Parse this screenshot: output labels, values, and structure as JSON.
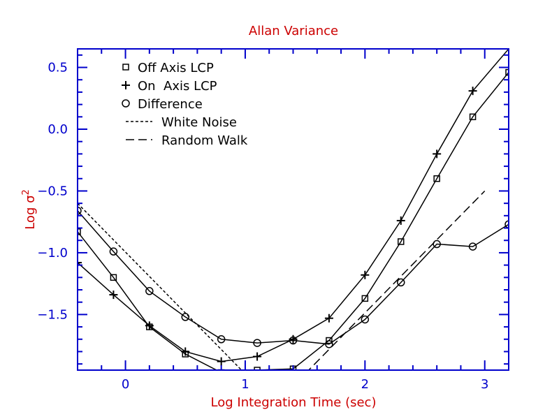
{
  "chart_data": {
    "type": "line",
    "title": "Allan Variance",
    "xlabel": "Log Integration Time (sec)",
    "ylabel": "Log σ",
    "ylabel_superscript": "2",
    "xlim": [
      -0.4,
      3.2
    ],
    "ylim": [
      -1.95,
      0.65
    ],
    "x_ticks": [
      0,
      1,
      2,
      3
    ],
    "x_tick_labels": [
      "0",
      "1",
      "2",
      "3"
    ],
    "x_minor_step": 0.2,
    "y_ticks": [
      0.5,
      0.0,
      -0.5,
      -1.0,
      -1.5
    ],
    "y_tick_labels": [
      "0.5",
      "0.0",
      "−0.5",
      "−1.0",
      "−1.5"
    ],
    "y_minor_step": 0.1,
    "grid": false,
    "legend_position": "top-left",
    "colors": {
      "frame": "#0000cc",
      "ticks": "#0000cc",
      "labels": "#cc0000",
      "data": "#000000"
    },
    "series": [
      {
        "name": "Off Axis LCP",
        "marker": "square",
        "x": [
          -0.4,
          -0.1,
          0.2,
          0.5,
          0.8,
          1.1,
          1.4,
          1.7,
          2.0,
          2.3,
          2.6,
          2.9,
          3.2
        ],
        "y": [
          -0.83,
          -1.2,
          -1.6,
          -1.82,
          -1.97,
          -1.95,
          -1.94,
          -1.71,
          -1.37,
          -0.91,
          -0.4,
          0.1,
          0.46
        ]
      },
      {
        "name": "On  Axis LCP",
        "marker": "plus",
        "x": [
          -0.4,
          -0.1,
          0.2,
          0.5,
          0.8,
          1.1,
          1.4,
          1.7,
          2.0,
          2.3,
          2.6,
          2.9,
          3.2
        ],
        "y": [
          -1.08,
          -1.34,
          -1.59,
          -1.8,
          -1.88,
          -1.84,
          -1.7,
          -1.53,
          -1.18,
          -0.74,
          -0.2,
          0.31,
          0.65
        ]
      },
      {
        "name": "Difference",
        "marker": "circle",
        "x": [
          -0.4,
          -0.1,
          0.2,
          0.5,
          0.8,
          1.1,
          1.4,
          1.7,
          2.0,
          2.3,
          2.6,
          2.9,
          3.2
        ],
        "y": [
          -0.66,
          -0.99,
          -1.31,
          -1.52,
          -1.7,
          -1.73,
          -1.71,
          -1.74,
          -1.54,
          -1.24,
          -0.93,
          -0.95,
          -0.77
        ]
      },
      {
        "name": "White Noise",
        "dash": "short",
        "x": [
          -0.4,
          1.0
        ],
        "y": [
          -0.6,
          -1.98
        ]
      },
      {
        "name": "Random Walk",
        "dash": "long",
        "x": [
          1.5,
          3.0
        ],
        "y": [
          -1.98,
          -0.5
        ]
      }
    ]
  }
}
